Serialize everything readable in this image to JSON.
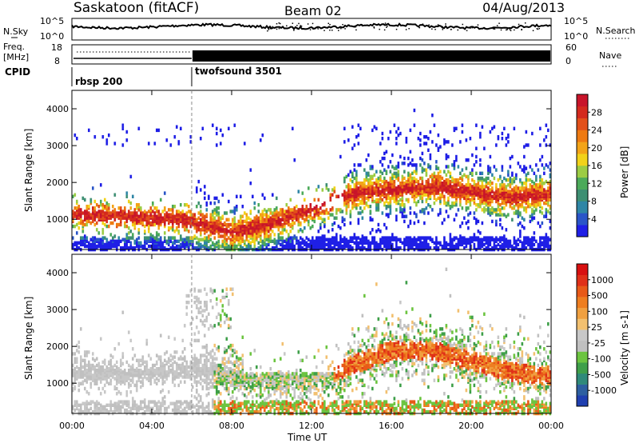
{
  "header": {
    "title": "Saskatoon (fitACF)",
    "beam": "Beam 02",
    "date": "04/Aug/2013"
  },
  "status_panels": {
    "left_labels": {
      "nsky": "N.Sky",
      "freq": "Freq.",
      "freq_unit": "[MHz]",
      "cpid": "CPID"
    },
    "right_labels": {
      "nsearch": "N.Search",
      "nave": "Nave"
    },
    "noise_ticks": {
      "left": [
        "10^5",
        "10^0"
      ],
      "right": [
        "10^5",
        "10^0"
      ]
    },
    "freq_ticks": {
      "left": [
        "18",
        "8"
      ],
      "right": [
        "60",
        "0"
      ]
    },
    "programs": [
      {
        "name": "rbsp 200",
        "start_hour": 0
      },
      {
        "name": "twofsound 3501",
        "start_hour": 6
      }
    ]
  },
  "colorbars": {
    "power": {
      "label": "Power [dB]",
      "ticks": [
        "4",
        "8",
        "12",
        "16",
        "20",
        "24",
        "28"
      ],
      "colors": [
        "#1f1fe6",
        "#2a55c8",
        "#2f86a6",
        "#3e8f73",
        "#4caa5a",
        "#9ccc44",
        "#f2d21a",
        "#f3a418",
        "#ee7a12",
        "#e2501a",
        "#d42a1e",
        "#c8142a"
      ]
    },
    "velocity": {
      "label": "Velocity [m s-1]",
      "ticks": [
        "1000",
        "500",
        "100",
        "25",
        "-25",
        "-100",
        "-500",
        "-1000"
      ],
      "colors": [
        "#1f3fb0",
        "#2d5fa0",
        "#2f8a7a",
        "#3f9f4a",
        "#6cc440",
        "#c0c0c0",
        "#c8c8c8",
        "#f2c070",
        "#f0a040",
        "#ee7e20",
        "#e85a18",
        "#e03018",
        "#d81010"
      ]
    }
  },
  "axes": {
    "ylabel": "Slant Range [km]",
    "xlabel": "Time UT",
    "yticks": [
      "1000",
      "2000",
      "3000",
      "4000"
    ],
    "xticks": [
      "00:00",
      "04:00",
      "08:00",
      "12:00",
      "16:00",
      "20:00",
      "00:00"
    ]
  },
  "chart_data": {
    "type": "heatmap",
    "x_range_hours": [
      0,
      24
    ],
    "y_range_km": [
      180,
      4500
    ],
    "program_change_hour": 6,
    "power_band": [
      {
        "t": 0,
        "r": 1150
      },
      {
        "t": 2,
        "r": 1100
      },
      {
        "t": 4,
        "r": 1050
      },
      {
        "t": 5.5,
        "r": 1000
      },
      {
        "t": 8,
        "r": 650
      },
      {
        "t": 10,
        "r": 900
      },
      {
        "t": 12,
        "r": 1300
      },
      {
        "t": 14,
        "r": 1700
      },
      {
        "t": 16,
        "r": 1800
      },
      {
        "t": 18,
        "r": 1900
      },
      {
        "t": 20,
        "r": 1750
      },
      {
        "t": 22,
        "r": 1600
      },
      {
        "t": 24,
        "r": 1700
      }
    ],
    "velocity_band": [
      {
        "t": 0,
        "r": 1300
      },
      {
        "t": 3,
        "r": 1250
      },
      {
        "t": 6,
        "r": 1400
      },
      {
        "t": 9,
        "r": 1100
      },
      {
        "t": 12,
        "r": 1100
      },
      {
        "t": 14,
        "r": 1500
      },
      {
        "t": 16,
        "r": 1900
      },
      {
        "t": 18,
        "r": 1900
      },
      {
        "t": 20,
        "r": 1600
      },
      {
        "t": 22,
        "r": 1300
      },
      {
        "t": 24,
        "r": 1200
      }
    ]
  }
}
